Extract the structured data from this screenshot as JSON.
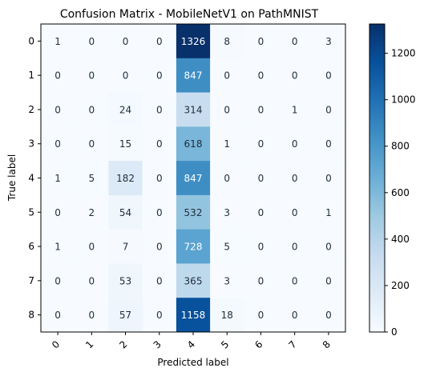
{
  "chart_data": {
    "type": "heatmap",
    "title": "Confusion Matrix - MobileNetV1 on PathMNIST",
    "xlabel": "Predicted label",
    "ylabel": "True label",
    "x_categories": [
      "0",
      "1",
      "2",
      "3",
      "4",
      "5",
      "6",
      "7",
      "8"
    ],
    "y_categories": [
      "0",
      "1",
      "2",
      "3",
      "4",
      "5",
      "6",
      "7",
      "8"
    ],
    "values": [
      [
        1,
        0,
        0,
        0,
        1326,
        8,
        0,
        0,
        3
      ],
      [
        0,
        0,
        0,
        0,
        847,
        0,
        0,
        0,
        0
      ],
      [
        0,
        0,
        24,
        0,
        314,
        0,
        0,
        1,
        0
      ],
      [
        0,
        0,
        15,
        0,
        618,
        1,
        0,
        0,
        0
      ],
      [
        1,
        5,
        182,
        0,
        847,
        0,
        0,
        0,
        0
      ],
      [
        0,
        2,
        54,
        0,
        532,
        3,
        0,
        0,
        1
      ],
      [
        1,
        0,
        7,
        0,
        728,
        5,
        0,
        0,
        0
      ],
      [
        0,
        0,
        53,
        0,
        365,
        3,
        0,
        0,
        0
      ],
      [
        0,
        0,
        57,
        0,
        1158,
        18,
        0,
        0,
        0
      ]
    ],
    "colorbar": {
      "colormap": "Blues",
      "min": 0,
      "max": 1326,
      "ticks": [
        0,
        200,
        400,
        600,
        800,
        1000,
        1200
      ]
    },
    "xtick_rotation": "45 degrees"
  }
}
